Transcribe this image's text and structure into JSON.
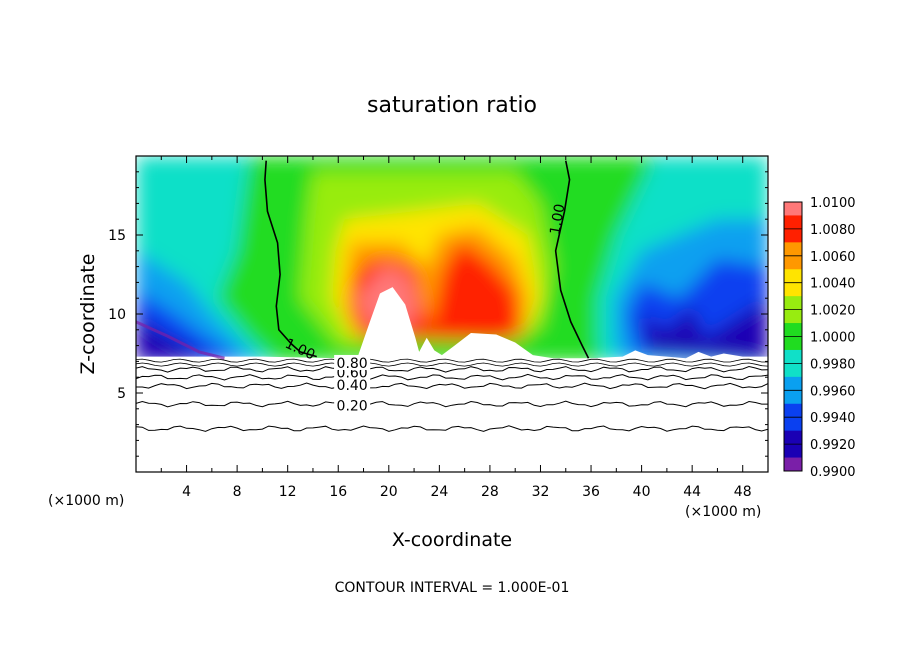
{
  "chart_data": {
    "type": "heatmap",
    "title": "saturation ratio",
    "xlabel": "X-coordinate",
    "ylabel": "Z-coordinate",
    "x_unit_left": "(×1000 m)",
    "x_unit_right": "(×1000 m)",
    "footer": "CONTOUR INTERVAL = 1.000E-01",
    "xlim": [
      0,
      50
    ],
    "ylim": [
      0,
      20
    ],
    "x_ticks": [
      4,
      8,
      12,
      16,
      20,
      24,
      28,
      32,
      36,
      40,
      44,
      48
    ],
    "y_ticks": [
      5,
      10,
      15
    ],
    "colorbar": {
      "range": [
        0.99,
        1.01
      ],
      "tick_values": [
        0.99,
        0.992,
        0.994,
        0.996,
        0.998,
        1.0,
        1.002,
        1.004,
        1.006,
        1.008,
        1.01
      ],
      "tick_labels": [
        "0.9900",
        "0.9920",
        "0.9940",
        "0.9960",
        "0.9980",
        "1.0000",
        "1.0020",
        "1.0040",
        "1.0060",
        "1.0080",
        "1.0100"
      ],
      "colors": [
        "#7a1fa8",
        "#1a00b4",
        "#0a40f0",
        "#0aa0f0",
        "#10e0c8",
        "#20dc20",
        "#98ec10",
        "#ffe400",
        "#ff9800",
        "#ff2000",
        "#ff7878"
      ]
    },
    "contour_labels": [
      {
        "text": "1.00",
        "x": 13,
        "z": 7.8
      },
      {
        "text": "1.00",
        "x": 33.3,
        "z": 16
      },
      {
        "text": "0.20",
        "x": 17.1,
        "z": 4.2
      },
      {
        "text": "0.40",
        "x": 17.1,
        "z": 5.5
      },
      {
        "text": "0.60",
        "x": 17.1,
        "z": 6.3
      },
      {
        "text": "0.80",
        "x": 17.1,
        "z": 6.9
      }
    ],
    "level_lines": [
      {
        "value": 0.2,
        "z": 4.3
      },
      {
        "value": 0.4,
        "z": 5.45
      },
      {
        "value": 0.6,
        "z": 6.0
      },
      {
        "value": 0.8,
        "z": 6.5
      },
      {
        "value": 0.1,
        "z": 2.75
      }
    ],
    "unity_contours": [
      [
        [
          10.3,
          19.7
        ],
        [
          10.2,
          18.5
        ],
        [
          10.4,
          16.5
        ],
        [
          11.2,
          14.5
        ],
        [
          11.4,
          12.5
        ],
        [
          11.1,
          10.5
        ],
        [
          11.3,
          9.0
        ],
        [
          12.3,
          8.1
        ],
        [
          13.0,
          7.6
        ],
        [
          14.3,
          7.3
        ]
      ],
      [
        [
          34.0,
          19.7
        ],
        [
          34.3,
          18.5
        ],
        [
          33.9,
          16.5
        ],
        [
          33.2,
          14.0
        ],
        [
          33.6,
          11.5
        ],
        [
          34.4,
          9.5
        ],
        [
          35.3,
          8.0
        ],
        [
          35.8,
          7.2
        ]
      ]
    ],
    "features": [
      {
        "kind": "ridge",
        "label": "1.0080",
        "x": 19.9,
        "z": 12.2
      },
      {
        "kind": "ridge",
        "label": "1.0080",
        "x": 26.0,
        "z": 13.0
      }
    ]
  }
}
